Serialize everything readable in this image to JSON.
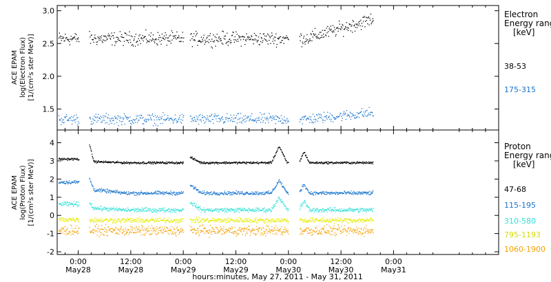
{
  "chart_data": {
    "type": "scatter",
    "x_axis": {
      "title": "hours:minutes, May 27, 2011 - May 31, 2011",
      "range_hours": [
        -4.8,
        96
      ],
      "ticks": [
        {
          "hour": 0,
          "time": "0:00",
          "date": "May28"
        },
        {
          "hour": 12,
          "time": "12:00",
          "date": "May28"
        },
        {
          "hour": 24,
          "time": "0:00",
          "date": "May29"
        },
        {
          "hour": 36,
          "time": "12:00",
          "date": "May29"
        },
        {
          "hour": 48,
          "time": "0:00",
          "date": "May30"
        },
        {
          "hour": 60,
          "time": "12:00",
          "date": "May30"
        },
        {
          "hour": 72,
          "time": "0:00",
          "date": "May31"
        }
      ],
      "data_segments_hours": [
        [
          -4.5,
          0.1
        ],
        [
          2.5,
          24.0
        ],
        [
          25.5,
          48.0
        ],
        [
          50.5,
          67.3
        ]
      ]
    },
    "panels": [
      {
        "ylabel": [
          "ACE EPAM",
          "log(Electron Flux)",
          "[1/(cm²s ster MeV)]"
        ],
        "ylim": [
          1.18,
          3.08
        ],
        "yticks": [
          1.5,
          2.0,
          2.5,
          3.0
        ],
        "ytick_labels": [
          "1.5",
          "2.0",
          "2.5",
          "3.0"
        ],
        "legend_title": [
          "Electron",
          "Energy ranges",
          "[keV]"
        ],
        "series": [
          {
            "name": "38-53",
            "color": "#000000",
            "base": 2.58,
            "jitter": 0.05,
            "trend_end": 2.88
          },
          {
            "name": "175-315",
            "color": "#1874cd",
            "base": 1.35,
            "jitter": 0.04,
            "trend_end": 1.45
          }
        ]
      },
      {
        "ylabel": [
          "ACE EPAM",
          "log(Proton Flux)",
          "[1/(cm²s ster MeV)]"
        ],
        "ylim": [
          -2.15,
          4.7
        ],
        "yticks": [
          -2,
          -1,
          0,
          1,
          2,
          3,
          4
        ],
        "ytick_labels": [
          "-2",
          "-1",
          "0",
          "1",
          "2",
          "3",
          "4"
        ],
        "legend_title": [
          "Proton",
          "Energy ranges",
          "[keV]"
        ],
        "series": [
          {
            "name": "47-68",
            "color": "#000000",
            "base": 2.92,
            "early": 3.12,
            "jitter": 0.03
          },
          {
            "name": "115-195",
            "color": "#1874cd",
            "base": 1.25,
            "early": 1.85,
            "jitter": 0.05
          },
          {
            "name": "310-580",
            "color": "#2ee0d6",
            "base": 0.32,
            "early": 0.65,
            "jitter": 0.06
          },
          {
            "name": "795-1193",
            "color": "#e4ec00",
            "base": -0.25,
            "early": -0.2,
            "jitter": 0.07
          },
          {
            "name": "1060-1900",
            "color": "#f5a000",
            "base": -0.82,
            "early": -0.8,
            "jitter": 0.13
          }
        ]
      }
    ]
  }
}
